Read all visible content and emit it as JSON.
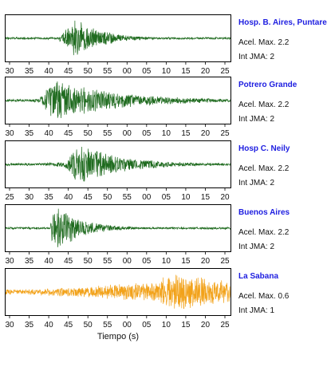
{
  "chart_data": {
    "type": "line",
    "xlabel": "Tiempo (s)",
    "panels": [
      {
        "station": "Hosp. B. Aires, Puntare",
        "acel_label": "Acel. Max. 2.2",
        "int_label": "Int JMA: 2",
        "color": "#1f6b1f",
        "ticks": [
          "30",
          "35",
          "40",
          "45",
          "50",
          "55",
          "00",
          "05",
          "10",
          "15",
          "20",
          "25"
        ],
        "onset_frac": 0.24,
        "peak_frac": 0.31,
        "peak_amp": 0.95,
        "decay": 0.12,
        "noise": 0.05
      },
      {
        "station": "Potrero Grande",
        "acel_label": "Acel. Max. 2.2",
        "int_label": "Int JMA: 2",
        "color": "#1f6b1f",
        "ticks": [
          "30",
          "35",
          "40",
          "45",
          "50",
          "55",
          "00",
          "05",
          "10",
          "15",
          "20",
          "25"
        ],
        "onset_frac": 0.08,
        "peak_frac": 0.22,
        "peak_amp": 0.95,
        "decay": 0.3,
        "noise": 0.06
      },
      {
        "station": "Hosp C. Neily",
        "acel_label": "Acel. Max. 2.2",
        "int_label": "Int JMA: 2",
        "color": "#1f6b1f",
        "ticks": [
          "25",
          "30",
          "35",
          "40",
          "45",
          "50",
          "55",
          "00",
          "05",
          "10",
          "15",
          "20"
        ],
        "onset_frac": 0.16,
        "peak_frac": 0.33,
        "peak_amp": 0.95,
        "decay": 0.2,
        "noise": 0.06
      },
      {
        "station": "Buenos Aires",
        "acel_label": "Acel. Max. 2.2",
        "int_label": "Int JMA: 2",
        "color": "#1f6b1f",
        "ticks": [
          "30",
          "35",
          "40",
          "45",
          "50",
          "55",
          "00",
          "05",
          "10",
          "15",
          "20",
          "25"
        ],
        "onset_frac": 0.2,
        "peak_frac": 0.24,
        "peak_amp": 0.95,
        "decay": 0.12,
        "noise": 0.05
      },
      {
        "station": "La Sabana",
        "acel_label": "Acel. Max. 0.6",
        "int_label": "Int JMA: 1",
        "color": "#f2a21a",
        "ticks": [
          "30",
          "35",
          "40",
          "45",
          "50",
          "55",
          "00",
          "05",
          "10",
          "15",
          "20",
          "25"
        ],
        "onset_frac": 0.1,
        "peak_frac": 0.72,
        "peak_amp": 0.95,
        "decay": 0.5,
        "noise": 0.12
      }
    ]
  }
}
